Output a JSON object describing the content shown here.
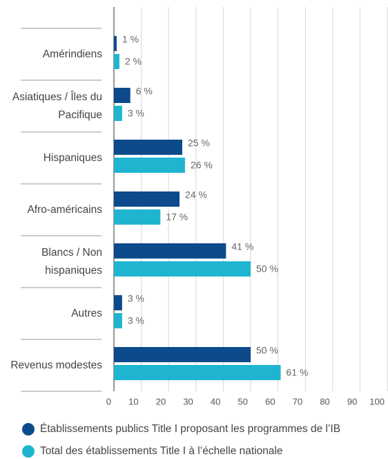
{
  "chart_data": {
    "type": "bar",
    "orientation": "horizontal",
    "categories": [
      "Amérindiens",
      "Asiatiques / Îles du Pacifique",
      "Hispaniques",
      "Afro-américains",
      "Blancs / Non hispaniques",
      "Autres",
      "Revenus modestes"
    ],
    "series": [
      {
        "name": "Établissements publics Title I proposant les programmes de l’IB",
        "color": "#0d4a8c",
        "values": [
          1,
          6,
          25,
          24,
          41,
          3,
          50
        ],
        "value_labels": [
          "1 %",
          "6 %",
          "25 %",
          "24 %",
          "41 %",
          "3 %",
          "50 %"
        ]
      },
      {
        "name": "Total des établissements Title I à l’échelle nationale",
        "color": "#1fb5d0",
        "values": [
          2,
          3,
          26,
          17,
          50,
          3,
          61
        ],
        "value_labels": [
          "2 %",
          "3 %",
          "26 %",
          "17 %",
          "50 %",
          "3 %",
          "61 %"
        ]
      }
    ],
    "xlim": [
      0,
      100
    ],
    "xticks": [
      0,
      10,
      20,
      30,
      40,
      50,
      60,
      70,
      80,
      90,
      100
    ],
    "grid": true
  }
}
